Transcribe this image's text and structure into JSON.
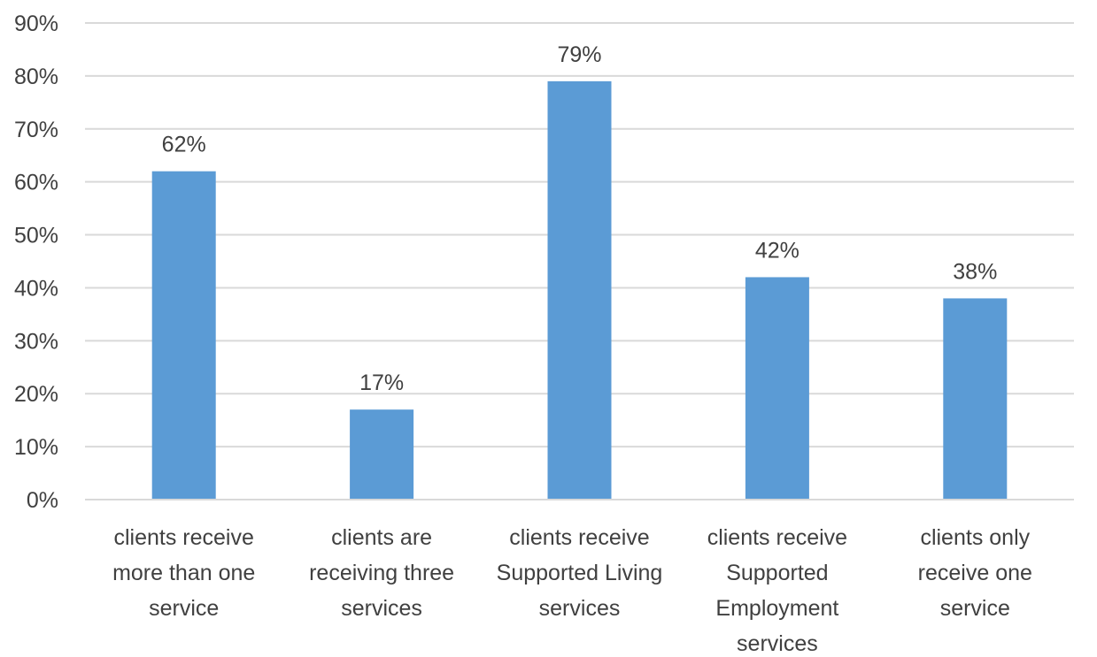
{
  "chart_data": {
    "type": "bar",
    "title": "",
    "xlabel": "",
    "ylabel": "",
    "ylim": [
      0,
      90
    ],
    "y_ticks": [
      0,
      10,
      20,
      30,
      40,
      50,
      60,
      70,
      80,
      90
    ],
    "y_tick_labels": [
      "0%",
      "10%",
      "20%",
      "30%",
      "40%",
      "50%",
      "60%",
      "70%",
      "80%",
      "90%"
    ],
    "grid": true,
    "legend": "none",
    "bar_color": "#5b9bd5",
    "categories": [
      [
        "clients receive",
        "more than one",
        "service"
      ],
      [
        "clients are",
        "receiving three",
        "services"
      ],
      [
        "clients receive",
        "Supported Living",
        "services"
      ],
      [
        "clients receive",
        "Supported",
        "Employment",
        "services"
      ],
      [
        "clients only",
        "receive one",
        "service"
      ]
    ],
    "values": [
      62,
      17,
      79,
      42,
      38
    ],
    "data_labels": [
      "62%",
      "17%",
      "79%",
      "42%",
      "38%"
    ]
  }
}
